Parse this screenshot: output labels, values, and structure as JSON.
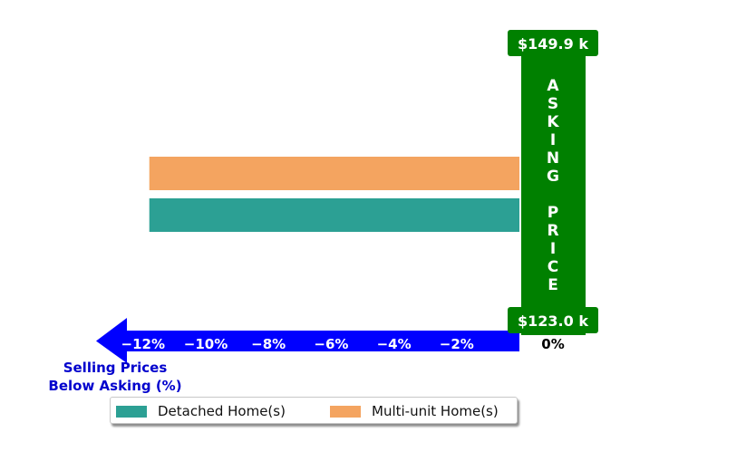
{
  "chart_data": {
    "type": "bar",
    "orientation": "horizontal",
    "xlabel": "Selling Prices\nBelow Asking (%)",
    "x_ticks": [
      "−12%",
      "−10%",
      "−8%",
      "−6%",
      "−4%",
      "−2%"
    ],
    "zero_label": "0%",
    "xlim": [
      -13.5,
      0
    ],
    "series": [
      {
        "name": "Multi-unit Home(s)",
        "values": [
          -11.8
        ],
        "color": "#F4A460"
      },
      {
        "name": "Detached Home(s)",
        "values": [
          -11.8
        ],
        "color": "#2CA094"
      }
    ],
    "asking_price": {
      "label": "A S K I N G   P R I C E",
      "letters": [
        "A",
        "S",
        "K",
        "I",
        "N",
        "G",
        "",
        "P",
        "R",
        "I",
        "C",
        "E"
      ],
      "top_value": "$149.9 k",
      "bottom_value": "$123.0 k",
      "color": "#008000"
    },
    "axis_arrow_color": "#0000FF",
    "axis_label_color": "#0000CD",
    "legend": [
      {
        "label": "Detached Home(s)",
        "color": "#2CA094"
      },
      {
        "label": "Multi-unit Home(s)",
        "color": "#F4A460"
      }
    ],
    "legend_position": "bottom-left"
  }
}
